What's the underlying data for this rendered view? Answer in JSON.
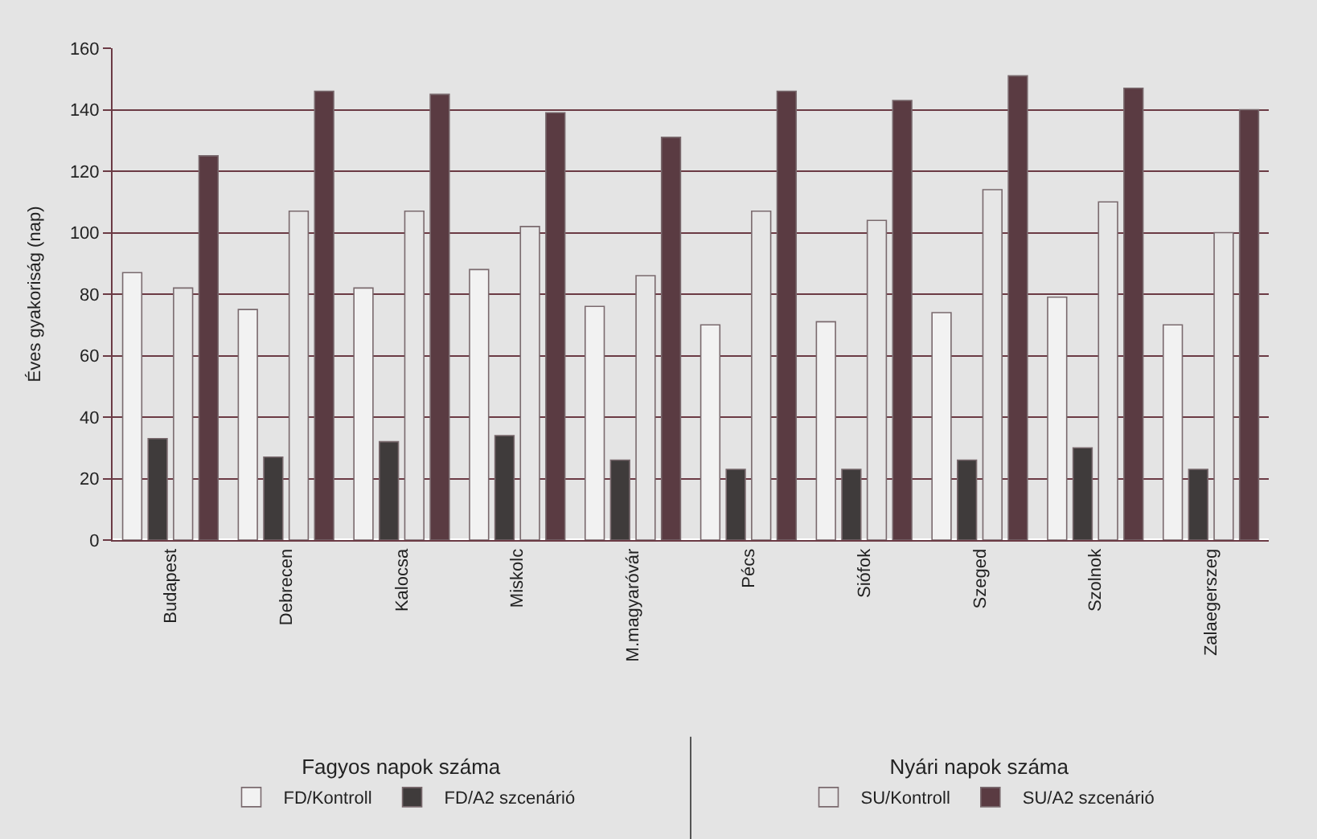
{
  "chart_data": {
    "type": "bar",
    "ylabel": "Éves gyakoriság (nap)",
    "categories": [
      "Budapest",
      "Debrecen",
      "Kalocsa",
      "Miskolc",
      "M.magyaróvár",
      "Pécs",
      "Siófok",
      "Szeged",
      "Szolnok",
      "Zalaegerszeg"
    ],
    "series": [
      {
        "name": "FD/Kontroll",
        "color": "#f2f2f2",
        "values": [
          87,
          75,
          82,
          88,
          76,
          70,
          71,
          74,
          79,
          70
        ]
      },
      {
        "name": "FD/A2 szcenárió",
        "color": "#3f3b3b",
        "values": [
          33,
          27,
          32,
          34,
          26,
          23,
          23,
          26,
          30,
          23
        ]
      },
      {
        "name": "SU/Kontroll",
        "color": "#e6e6e6",
        "values": [
          82,
          107,
          107,
          102,
          86,
          107,
          104,
          114,
          110,
          100
        ]
      },
      {
        "name": "SU/A2 szcenárió",
        "color": "#5a3b42",
        "values": [
          125,
          146,
          145,
          139,
          131,
          146,
          143,
          151,
          147,
          140
        ]
      }
    ],
    "annotations": [
      "Fagyos napok száma",
      "Nyári napok száma"
    ],
    "ylim": [
      0,
      160
    ],
    "yticks": [
      0,
      20,
      40,
      60,
      80,
      100,
      120,
      140,
      160
    ],
    "grid": "y",
    "legend": "bottom"
  }
}
